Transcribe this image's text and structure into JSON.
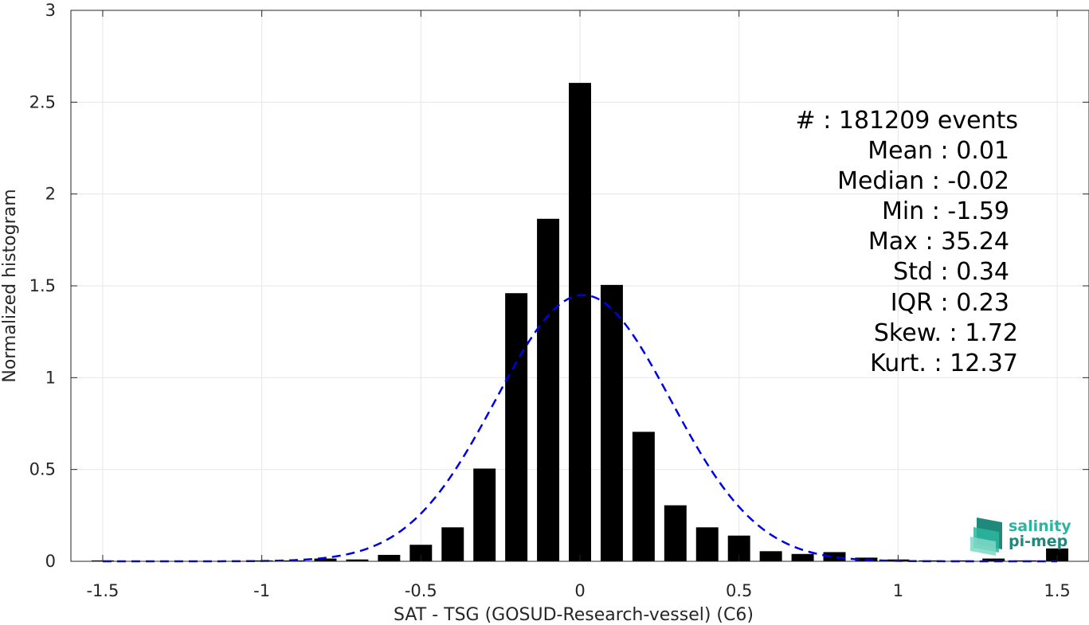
{
  "chart_data": {
    "type": "bar",
    "title": "",
    "xlabel": "SAT - TSG (GOSUD-Research-vessel) (C6)",
    "ylabel": "Normalized histogram",
    "xlim": [
      -1.6,
      1.6
    ],
    "ylim": [
      0,
      3
    ],
    "grid": true,
    "x_ticks": [
      -1.5,
      -1,
      -0.5,
      0,
      0.5,
      1,
      1.5
    ],
    "x_tick_labels": [
      "-1.5",
      "-1",
      "-0.5",
      "0",
      "0.5",
      "1",
      "1.5"
    ],
    "y_ticks": [
      0,
      0.5,
      1,
      1.5,
      2,
      2.5,
      3
    ],
    "y_tick_labels": [
      "0",
      "0.5",
      "1",
      "1.5",
      "2",
      "2.5",
      "3"
    ],
    "bar_width": 0.07,
    "bins": [
      {
        "x": -1.5,
        "y": 0.005
      },
      {
        "x": -1.0,
        "y": 0.005
      },
      {
        "x": -0.9,
        "y": 0.005
      },
      {
        "x": -0.8,
        "y": 0.015
      },
      {
        "x": -0.7,
        "y": 0.01
      },
      {
        "x": -0.6,
        "y": 0.035
      },
      {
        "x": -0.5,
        "y": 0.09
      },
      {
        "x": -0.4,
        "y": 0.185
      },
      {
        "x": -0.3,
        "y": 0.505
      },
      {
        "x": -0.2,
        "y": 1.46
      },
      {
        "x": -0.1,
        "y": 1.865
      },
      {
        "x": 0.0,
        "y": 2.605
      },
      {
        "x": 0.1,
        "y": 1.505
      },
      {
        "x": 0.2,
        "y": 0.705
      },
      {
        "x": 0.3,
        "y": 0.305
      },
      {
        "x": 0.4,
        "y": 0.185
      },
      {
        "x": 0.5,
        "y": 0.14
      },
      {
        "x": 0.6,
        "y": 0.055
      },
      {
        "x": 0.7,
        "y": 0.04
      },
      {
        "x": 0.8,
        "y": 0.05
      },
      {
        "x": 0.9,
        "y": 0.02
      },
      {
        "x": 1.0,
        "y": 0.01
      },
      {
        "x": 1.1,
        "y": 0.005
      },
      {
        "x": 1.2,
        "y": 0.005
      },
      {
        "x": 1.3,
        "y": 0.015
      },
      {
        "x": 1.4,
        "y": 0.005
      },
      {
        "x": 1.5,
        "y": 0.07
      }
    ],
    "gaussian_fit": {
      "mean": 0.01,
      "std": 0.275,
      "peak": 1.45,
      "color": "#0000e6",
      "style": "dashed"
    },
    "bar_color": "#000000",
    "stats_lines": [
      "#  : 181209 events",
      "Mean : 0.01",
      "Median : -0.02",
      "Min : -1.59",
      "Max : 35.24",
      "Std : 0.34",
      "IQR : 0.23",
      "Skew. : 1.72",
      "Kurt. : 12.37"
    ]
  },
  "logo": {
    "line1": "salinity",
    "line2": "pi-mep",
    "color1": "#2bb5a0",
    "color2": "#1f8a7c"
  }
}
